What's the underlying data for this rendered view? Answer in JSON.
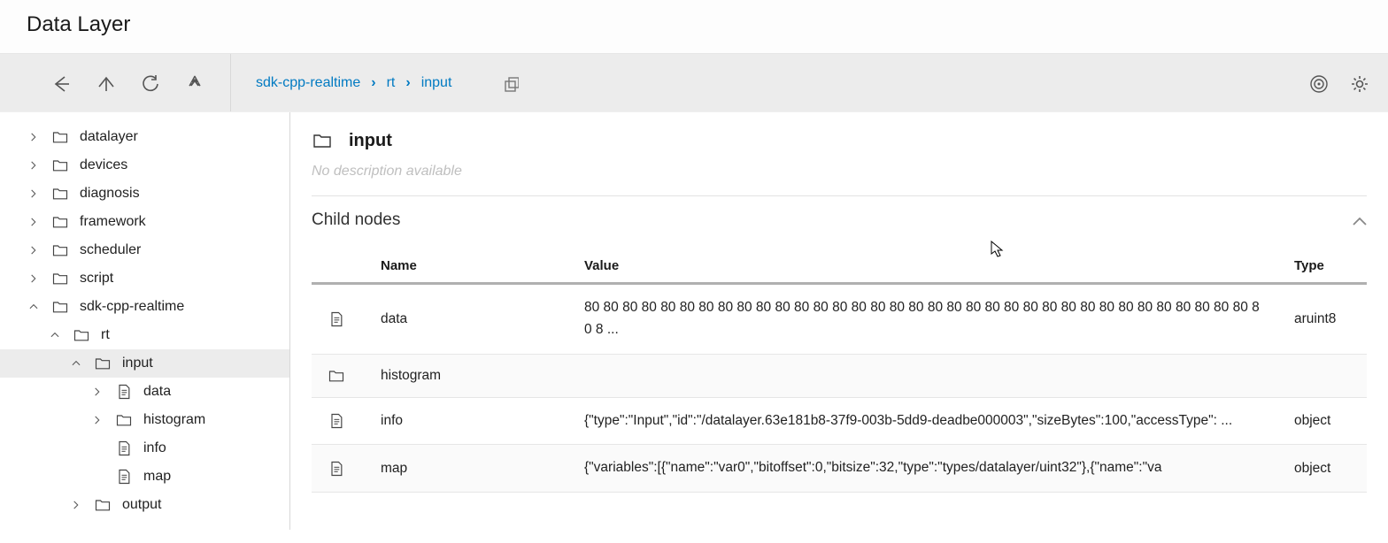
{
  "header": {
    "title": "Data Layer"
  },
  "breadcrumb": {
    "items": [
      "sdk-cpp-realtime",
      "rt",
      "input"
    ]
  },
  "tree": {
    "items": [
      {
        "label": "datalayer",
        "depth": 0,
        "expanded": false,
        "hasChildren": true,
        "icon": "folder",
        "selected": false
      },
      {
        "label": "devices",
        "depth": 0,
        "expanded": false,
        "hasChildren": true,
        "icon": "folder",
        "selected": false
      },
      {
        "label": "diagnosis",
        "depth": 0,
        "expanded": false,
        "hasChildren": true,
        "icon": "folder",
        "selected": false
      },
      {
        "label": "framework",
        "depth": 0,
        "expanded": false,
        "hasChildren": true,
        "icon": "folder",
        "selected": false
      },
      {
        "label": "scheduler",
        "depth": 0,
        "expanded": false,
        "hasChildren": true,
        "icon": "folder",
        "selected": false
      },
      {
        "label": "script",
        "depth": 0,
        "expanded": false,
        "hasChildren": true,
        "icon": "folder",
        "selected": false
      },
      {
        "label": "sdk-cpp-realtime",
        "depth": 0,
        "expanded": true,
        "hasChildren": true,
        "icon": "folder",
        "selected": false
      },
      {
        "label": "rt",
        "depth": 1,
        "expanded": true,
        "hasChildren": true,
        "icon": "folder",
        "selected": false
      },
      {
        "label": "input",
        "depth": 2,
        "expanded": true,
        "hasChildren": true,
        "icon": "folder",
        "selected": true
      },
      {
        "label": "data",
        "depth": 3,
        "expanded": false,
        "hasChildren": true,
        "icon": "file",
        "selected": false
      },
      {
        "label": "histogram",
        "depth": 3,
        "expanded": false,
        "hasChildren": true,
        "icon": "folder",
        "selected": false
      },
      {
        "label": "info",
        "depth": 3,
        "expanded": false,
        "hasChildren": false,
        "icon": "file",
        "selected": false
      },
      {
        "label": "map",
        "depth": 3,
        "expanded": false,
        "hasChildren": false,
        "icon": "file",
        "selected": false
      },
      {
        "label": "output",
        "depth": 2,
        "expanded": false,
        "hasChildren": true,
        "icon": "folder",
        "selected": false
      }
    ]
  },
  "node": {
    "title": "input",
    "description": "No description available"
  },
  "childSection": {
    "title": "Child nodes",
    "columns": {
      "name": "Name",
      "value": "Value",
      "type": "Type"
    },
    "rows": [
      {
        "icon": "file",
        "name": "data",
        "value": "80 80 80 80 80 80 80 80 80 80 80 80 80 80 80 80 80 80 80 80 80 80 80 80 80 80 80 80 80 80 80 80 80 80 80 80 8 ...",
        "type": "aruint8"
      },
      {
        "icon": "folder",
        "name": "histogram",
        "value": "",
        "type": ""
      },
      {
        "icon": "file",
        "name": "info",
        "value": "{\"type\":\"Input\",\"id\":\"/datalayer.63e181b8-37f9-003b-5dd9-deadbe000003\",\"sizeBytes\":100,\"accessType\": ...",
        "type": "object"
      },
      {
        "icon": "file",
        "name": "map",
        "value": "{\"variables\":[{\"name\":\"var0\",\"bitoffset\":0,\"bitsize\":32,\"type\":\"types/datalayer/uint32\"},{\"name\":\"va",
        "type": "object"
      }
    ]
  }
}
